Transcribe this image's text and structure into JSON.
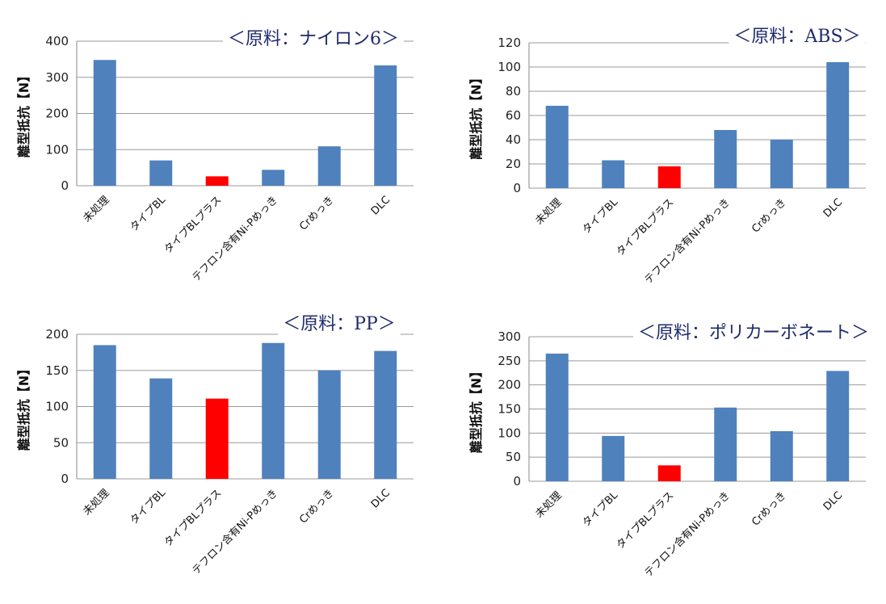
{
  "colors": {
    "bar": "#4f81bd",
    "highlight": "#ff0000",
    "grid": "#9a9a9a",
    "title": "#1f2a6b"
  },
  "chart_data": [
    {
      "type": "bar",
      "title": "＜原料：ナイロン6＞",
      "ylabel": "離型抵抗【N】",
      "ylim": [
        0,
        400
      ],
      "yticks": [
        "0",
        "100",
        "200",
        "300",
        "400"
      ],
      "categories": [
        "未処理",
        "タイプBL",
        "タイプBLプラス",
        "テフロン含有Ni-Pめっき",
        "Crめっき",
        "DLC"
      ],
      "values": [
        348,
        70,
        26,
        44,
        109,
        333
      ],
      "highlight_index": 2,
      "grid": true
    },
    {
      "type": "bar",
      "title": "＜原料：ABS＞",
      "ylabel": "離型抵抗【N】",
      "ylim": [
        0,
        120
      ],
      "yticks": [
        "0",
        "20",
        "40",
        "60",
        "80",
        "100",
        "120"
      ],
      "categories": [
        "未処理",
        "タイプBL",
        "タイプBLプラス",
        "テフロン含有Ni-Pめっき",
        "Crめっき",
        "DLC"
      ],
      "values": [
        68,
        23,
        18,
        48,
        40,
        104
      ],
      "highlight_index": 2,
      "grid": true
    },
    {
      "type": "bar",
      "title": "＜原料：PP＞",
      "ylabel": "離型抵抗【N】",
      "ylim": [
        0,
        200
      ],
      "yticks": [
        "0",
        "50",
        "100",
        "150",
        "200"
      ],
      "categories": [
        "未処理",
        "タイプBL",
        "タイプBLプラス",
        "テフロン含有Ni-Pめっき",
        "Crめっき",
        "DLC"
      ],
      "values": [
        185,
        139,
        111,
        188,
        150,
        177
      ],
      "highlight_index": 2,
      "grid": true
    },
    {
      "type": "bar",
      "title": "＜原料：ポリカーボネート＞",
      "ylabel": "離型抵抗【N】",
      "ylim": [
        0,
        300
      ],
      "yticks": [
        "0",
        "50",
        "100",
        "150",
        "200",
        "250",
        "300"
      ],
      "categories": [
        "未処理",
        "タイプBL",
        "タイプBLプラス",
        "テフロン含有Ni-Pめっき",
        "Crめっき",
        "DLC"
      ],
      "values": [
        265,
        94,
        33,
        153,
        104,
        229
      ],
      "highlight_index": 2,
      "grid": true
    }
  ]
}
